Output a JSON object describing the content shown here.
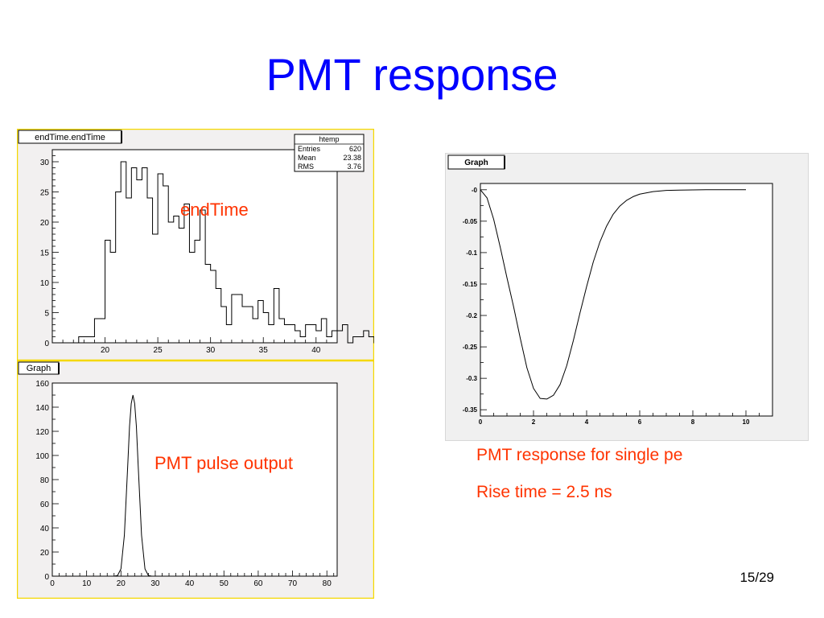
{
  "slide": {
    "title": "PMT response",
    "page_number": "15/29"
  },
  "annotations": {
    "endtime": "endTime",
    "pulse": "PMT pulse output",
    "single_pe": "PMT response for single pe",
    "rise_time": "Rise time = 2.5 ns"
  },
  "colors": {
    "title": "#0000ff",
    "annotation": "#ff3300",
    "frame_bg": "#f2f0f0",
    "border": "#f5d800",
    "curve": "#000000"
  },
  "chart_data": [
    {
      "type": "histogram",
      "label": "endTime.endTime",
      "stats": {
        "title": "htemp",
        "rows": [
          [
            "Entries",
            "620"
          ],
          [
            "Mean",
            "23.38"
          ],
          [
            "RMS",
            "3.76"
          ]
        ]
      },
      "xlim": [
        15,
        42
      ],
      "ylim": [
        0,
        32
      ],
      "x_ticks": [
        20,
        25,
        30,
        35,
        40
      ],
      "y_ticks": [
        0,
        5,
        10,
        15,
        20,
        25,
        30
      ],
      "bin_start": 17.5,
      "bin_width": 0.5,
      "values": [
        1,
        1,
        1,
        4,
        4,
        17,
        15,
        25,
        30,
        24,
        29,
        27,
        29,
        24,
        18,
        28,
        26,
        20,
        21,
        19,
        23,
        15,
        17,
        22,
        13,
        12,
        9,
        6,
        3,
        8,
        8,
        6,
        6,
        4,
        7,
        5,
        3,
        9,
        4,
        3,
        3,
        2,
        1,
        3,
        3,
        2,
        4,
        1,
        2,
        2,
        3,
        0,
        1,
        1,
        2,
        1,
        0,
        0,
        0,
        2,
        0,
        3,
        2,
        1,
        0,
        2,
        2,
        1,
        2,
        2,
        1,
        1,
        2,
        2,
        1,
        0,
        1,
        1,
        1,
        0,
        1,
        1,
        1,
        0,
        0,
        0,
        1,
        0,
        0,
        2,
        0,
        0
      ]
    },
    {
      "type": "line",
      "label": "Graph",
      "xlim": [
        0,
        83
      ],
      "ylim": [
        0,
        160
      ],
      "x_ticks": [
        0,
        10,
        20,
        30,
        40,
        50,
        60,
        70,
        80
      ],
      "y_ticks": [
        0,
        20,
        40,
        60,
        80,
        100,
        120,
        140,
        160
      ],
      "x": [
        0,
        18,
        19,
        20,
        21,
        22,
        22.5,
        23,
        23.5,
        24,
        24.5,
        25,
        26,
        27,
        28,
        29,
        30,
        83
      ],
      "y": [
        0,
        0,
        0.5,
        6,
        34,
        93,
        124,
        143,
        150,
        143,
        124,
        93,
        34,
        6,
        0.5,
        0,
        0,
        0
      ]
    },
    {
      "type": "line",
      "label": "Graph",
      "xlim": [
        0,
        11
      ],
      "ylim": [
        -0.36,
        0.01
      ],
      "x_ticks": [
        0,
        2,
        4,
        6,
        8,
        10
      ],
      "x_tick_labels": [
        "0",
        "2",
        "4",
        "6",
        "8",
        "10"
      ],
      "y_ticks": [
        0,
        -0.05,
        -0.1,
        -0.15,
        -0.2,
        -0.25,
        -0.3,
        -0.35
      ],
      "y_tick_labels": [
        "-0",
        "-0.05",
        "-0.1",
        "-0.15",
        "-0.2",
        "-0.25",
        "-0.3",
        "-0.35"
      ],
      "x": [
        0,
        0.25,
        0.5,
        0.75,
        1,
        1.25,
        1.5,
        1.75,
        2,
        2.25,
        2.5,
        2.75,
        3,
        3.25,
        3.5,
        3.75,
        4,
        4.25,
        4.5,
        4.75,
        5,
        5.25,
        5.5,
        5.75,
        6,
        6.5,
        7,
        7.5,
        8,
        8.5,
        9,
        10
      ],
      "y": [
        0,
        -0.013,
        -0.047,
        -0.092,
        -0.14,
        -0.186,
        -0.236,
        -0.283,
        -0.316,
        -0.332,
        -0.333,
        -0.327,
        -0.31,
        -0.28,
        -0.24,
        -0.196,
        -0.154,
        -0.115,
        -0.083,
        -0.058,
        -0.039,
        -0.026,
        -0.017,
        -0.011,
        -0.007,
        -0.003,
        -0.001,
        -0.0005,
        -0.0002,
        0,
        0,
        0
      ]
    }
  ]
}
